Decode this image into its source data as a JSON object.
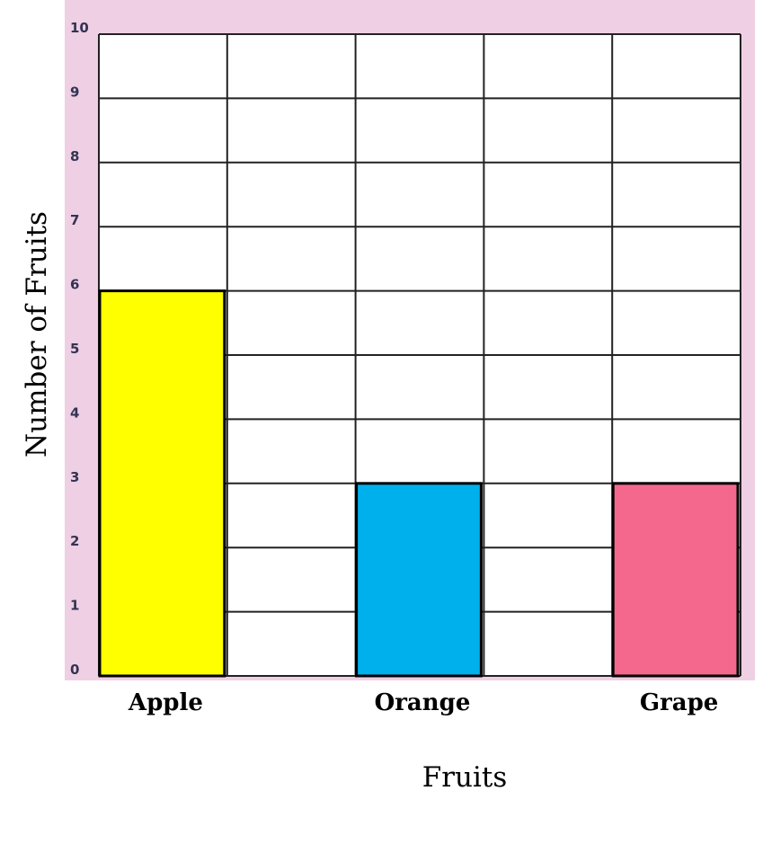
{
  "chart_data": {
    "type": "bar",
    "title": "",
    "xlabel": "Fruits",
    "ylabel": "Number of Fruits",
    "categories": [
      "Apple",
      "Orange",
      "Grape"
    ],
    "values": [
      6,
      3,
      3
    ],
    "colors": [
      "#ffff00",
      "#00b0ec",
      "#f5688e"
    ],
    "ylim": [
      0,
      10
    ],
    "yticks": [
      "0",
      "1",
      "2",
      "3",
      "4",
      "5",
      "6",
      "7",
      "8",
      "9",
      "10"
    ],
    "grid": true,
    "legend": "none",
    "background_color": "#efcfe3"
  }
}
